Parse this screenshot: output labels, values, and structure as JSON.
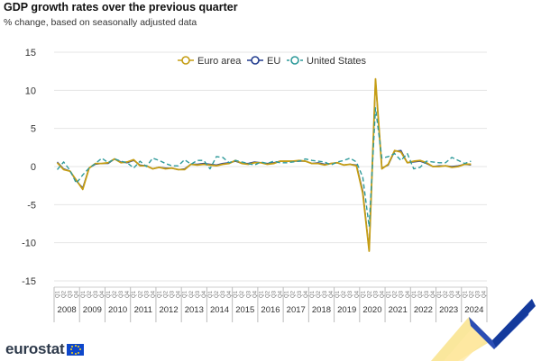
{
  "title": "GDP growth rates over the previous quarter",
  "subtitle": "% change, based on seasonally adjusted data",
  "brand": "eurostat",
  "colors": {
    "euro_area": "#c59d14",
    "eu": "#233d8f",
    "us": "#2e9a9a",
    "grid": "#e5e5e5",
    "axis_text": "#333333"
  },
  "chart_data": {
    "type": "line",
    "xlabel": "",
    "ylabel": "",
    "ylim": [
      -15,
      15
    ],
    "yticks": [
      15,
      10,
      5,
      0,
      -5,
      -10,
      -15
    ],
    "grid": true,
    "legend_position": "top-center",
    "years": [
      "2008",
      "2009",
      "2010",
      "2011",
      "2012",
      "2013",
      "2014",
      "2015",
      "2016",
      "2017",
      "2018",
      "2019",
      "2020",
      "2021",
      "2022",
      "2023",
      "2024"
    ],
    "quarter_labels": [
      "Q1",
      "Q2",
      "Q3",
      "Q4"
    ],
    "x": [
      "2008Q1",
      "2008Q2",
      "2008Q3",
      "2008Q4",
      "2009Q1",
      "2009Q2",
      "2009Q3",
      "2009Q4",
      "2010Q1",
      "2010Q2",
      "2010Q3",
      "2010Q4",
      "2011Q1",
      "2011Q2",
      "2011Q3",
      "2011Q4",
      "2012Q1",
      "2012Q2",
      "2012Q3",
      "2012Q4",
      "2013Q1",
      "2013Q2",
      "2013Q3",
      "2013Q4",
      "2014Q1",
      "2014Q2",
      "2014Q3",
      "2014Q4",
      "2015Q1",
      "2015Q2",
      "2015Q3",
      "2015Q4",
      "2016Q1",
      "2016Q2",
      "2016Q3",
      "2016Q4",
      "2017Q1",
      "2017Q2",
      "2017Q3",
      "2017Q4",
      "2018Q1",
      "2018Q2",
      "2018Q3",
      "2018Q4",
      "2019Q1",
      "2019Q2",
      "2019Q3",
      "2019Q4",
      "2020Q1",
      "2020Q2",
      "2020Q3",
      "2020Q4",
      "2021Q1",
      "2021Q2",
      "2021Q3",
      "2021Q4",
      "2022Q1",
      "2022Q2",
      "2022Q3",
      "2022Q4",
      "2023Q1",
      "2023Q2",
      "2023Q3",
      "2023Q4",
      "2024Q1",
      "2024Q2"
    ],
    "series": [
      {
        "name": "Euro area",
        "style": "solid",
        "values": [
          0.5,
          -0.4,
          -0.6,
          -1.8,
          -3.0,
          -0.2,
          0.4,
          0.4,
          0.5,
          1.0,
          0.5,
          0.6,
          0.9,
          0.1,
          0.1,
          -0.3,
          -0.1,
          -0.3,
          -0.2,
          -0.4,
          -0.4,
          0.3,
          0.2,
          0.3,
          0.2,
          0.1,
          0.3,
          0.4,
          0.8,
          0.4,
          0.3,
          0.5,
          0.5,
          0.3,
          0.4,
          0.7,
          0.7,
          0.7,
          0.8,
          0.7,
          0.4,
          0.4,
          0.2,
          0.4,
          0.5,
          0.2,
          0.3,
          0.1,
          -3.5,
          -11.1,
          11.5,
          -0.3,
          0.3,
          2.1,
          1.9,
          0.5,
          0.7,
          0.8,
          0.5,
          0.0,
          0.0,
          0.1,
          -0.1,
          0.0,
          0.3,
          0.3
        ]
      },
      {
        "name": "EU",
        "style": "solid",
        "values": [
          0.6,
          -0.3,
          -0.6,
          -1.9,
          -2.8,
          -0.2,
          0.3,
          0.4,
          0.4,
          1.0,
          0.6,
          0.5,
          0.8,
          0.2,
          0.1,
          -0.3,
          -0.1,
          -0.2,
          -0.2,
          -0.4,
          -0.3,
          0.3,
          0.3,
          0.4,
          0.3,
          0.2,
          0.4,
          0.5,
          0.7,
          0.4,
          0.4,
          0.6,
          0.5,
          0.4,
          0.5,
          0.7,
          0.7,
          0.7,
          0.7,
          0.7,
          0.4,
          0.5,
          0.3,
          0.4,
          0.5,
          0.2,
          0.3,
          0.2,
          -3.2,
          -11.0,
          11.3,
          -0.2,
          0.2,
          2.0,
          2.1,
          0.5,
          0.6,
          0.7,
          0.4,
          0.0,
          0.1,
          0.1,
          0.0,
          0.1,
          0.3,
          0.2
        ]
      },
      {
        "name": "United States",
        "style": "dashed",
        "values": [
          -0.4,
          0.6,
          -0.5,
          -2.2,
          -1.1,
          -0.2,
          0.4,
          1.1,
          0.5,
          1.0,
          0.7,
          0.5,
          -0.2,
          0.7,
          0.0,
          1.1,
          0.8,
          0.4,
          0.1,
          0.1,
          0.9,
          0.3,
          0.8,
          0.8,
          -0.3,
          1.3,
          1.2,
          0.5,
          0.8,
          0.6,
          0.4,
          0.2,
          0.6,
          0.4,
          0.7,
          0.5,
          0.5,
          0.6,
          0.7,
          1.0,
          0.8,
          0.7,
          0.6,
          0.2,
          0.6,
          0.8,
          1.1,
          0.6,
          -1.4,
          -7.9,
          7.7,
          1.1,
          1.3,
          1.7,
          0.8,
          1.7,
          -0.3,
          -0.1,
          0.7,
          0.6,
          0.5,
          0.5,
          1.2,
          0.8,
          0.4,
          0.7
        ]
      }
    ]
  }
}
